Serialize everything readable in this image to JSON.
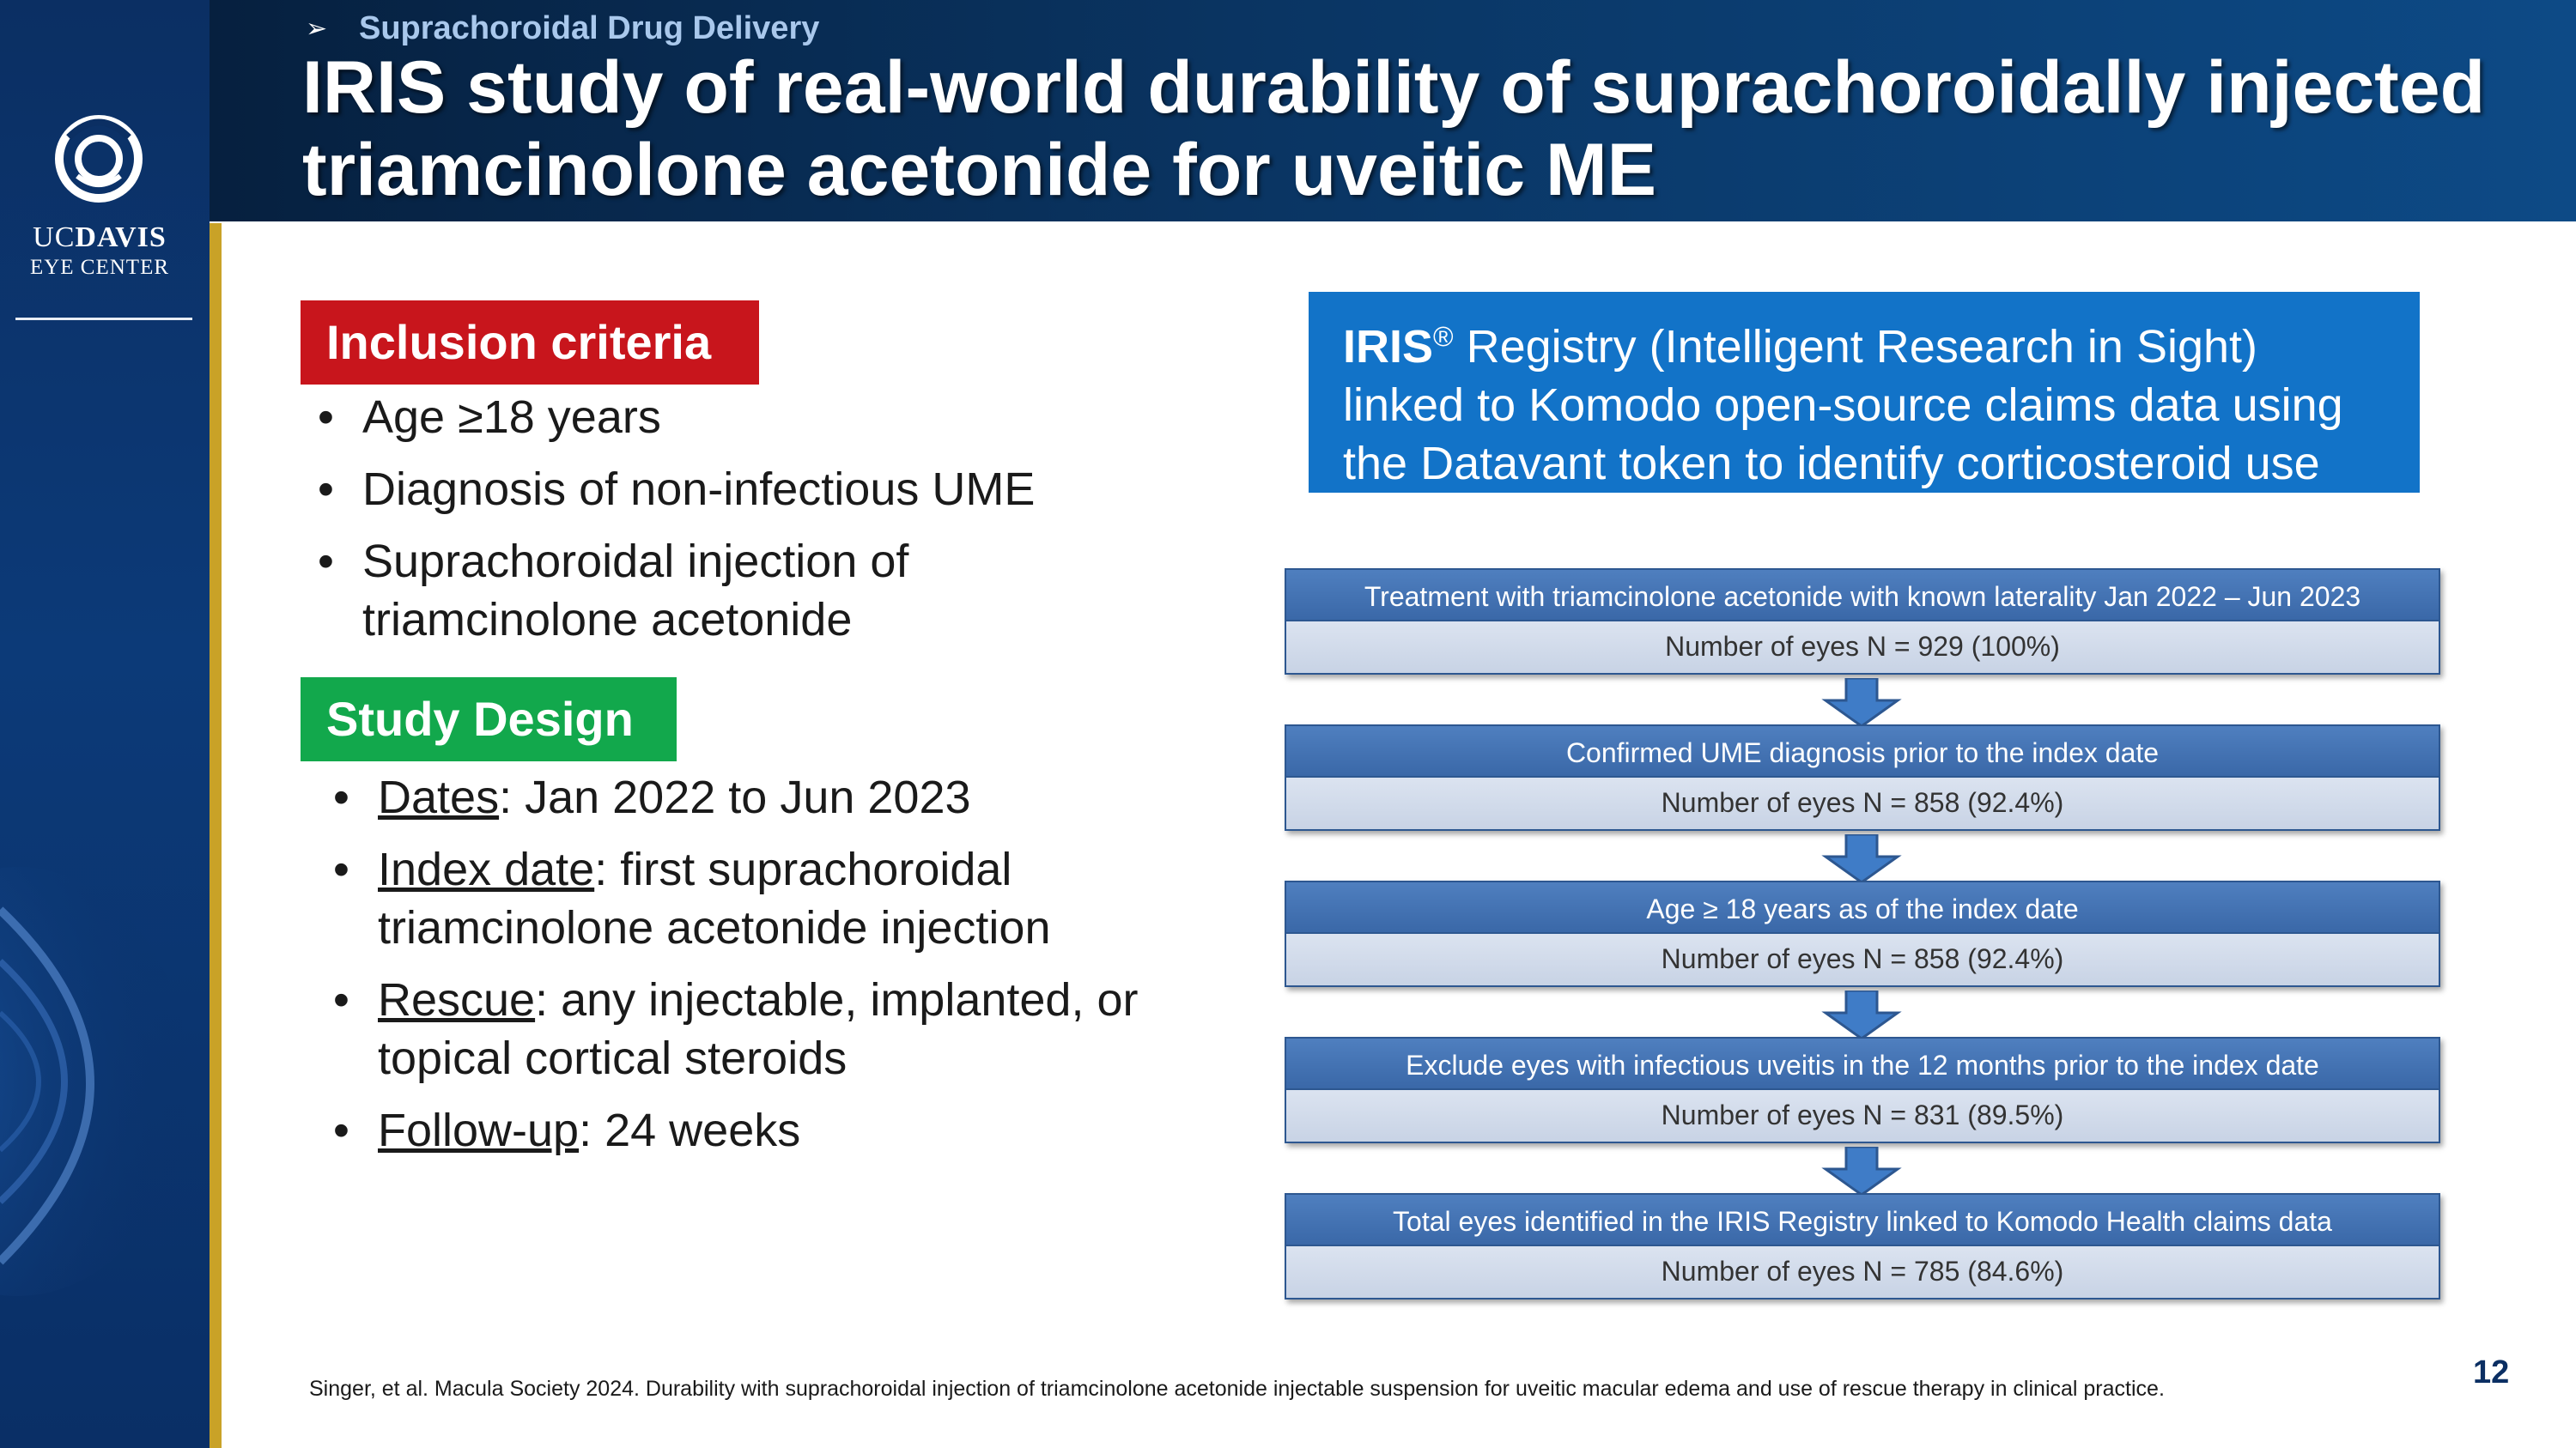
{
  "header": {
    "breadcrumb_bullet": "➢",
    "breadcrumb": "Suprachoroidal Drug Delivery",
    "title": "IRIS study of real-world durability of suprachoroidally injected triamcinolone acetonide for uveitic ME"
  },
  "logo": {
    "uc": "UC",
    "davis": "DAVIS",
    "eye_center": "EYE CENTER"
  },
  "inclusion": {
    "label": "Inclusion criteria",
    "items": [
      "Age ≥18 years",
      "Diagnosis of non-infectious UME",
      "Suprachoroidal injection of triamcinolone acetonide"
    ]
  },
  "design": {
    "label": "Study Design",
    "items": [
      {
        "term": "Dates",
        "text": ": Jan 2022 to Jun 2023"
      },
      {
        "term": "Index date",
        "text": ": first suprachoroidal triamcinolone acetonide injection"
      },
      {
        "term": "Rescue",
        "text": ": any injectable, implanted, or topical cortical steroids"
      },
      {
        "term": "Follow-up",
        "text": ": 24 weeks"
      }
    ]
  },
  "registry": {
    "name": "IRIS",
    "mark": "®",
    "text": " Registry (Intelligent Research in Sight) linked to Komodo open-source claims data using the Datavant token to identify corticosteroid use"
  },
  "flow": [
    {
      "step": "Treatment with triamcinolone acetonide with known laterality Jan 2022 – Jun 2023",
      "count": "Number of eyes N = 929 (100%)"
    },
    {
      "step": "Confirmed UME diagnosis prior to the index date",
      "count": "Number of eyes N = 858 (92.4%)"
    },
    {
      "step": "Age ≥ 18 years as of the index date",
      "count": "Number of eyes N = 858 (92.4%)"
    },
    {
      "step": "Exclude eyes with infectious uveitis in the 12 months prior to the index date",
      "count": "Number of eyes N = 831 (89.5%)"
    },
    {
      "step": "Total eyes identified in the IRIS Registry linked to Komodo Health claims data",
      "count": "Number of eyes N = 785 (84.6%)"
    }
  ],
  "footnote": "Singer, et al. Macula Society 2024. Durability with suprachoroidal injection of triamcinolone acetonide injectable suspension for uveitic macular edema and use of rescue therapy in clinical practice.",
  "page_number": "12",
  "colors": {
    "inclusion_label": "#c8151c",
    "design_label": "#12a84c",
    "registry_box": "#1273c8",
    "flow_step": "#3a68a8",
    "flow_count": "#c8d3e5"
  }
}
